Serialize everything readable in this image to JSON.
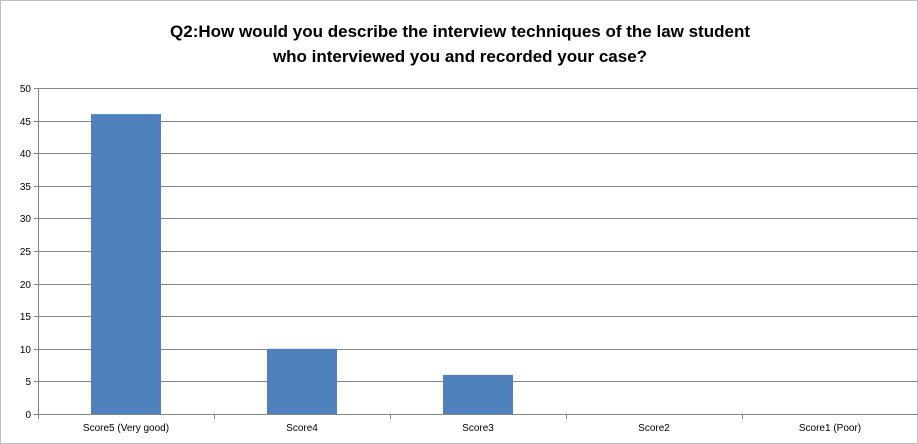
{
  "chart_data": {
    "type": "bar",
    "title_lines": [
      "Q2:How would you describe the interview techniques of the law student",
      "who interviewed you and recorded your case?"
    ],
    "categories": [
      "Score5 (Very good)",
      "Score4",
      "Score3",
      "Score2",
      "Score1 (Poor)"
    ],
    "values": [
      46,
      10,
      6,
      0,
      0
    ],
    "xlabel": "",
    "ylabel": "",
    "ylim": [
      0,
      50
    ],
    "yticks": [
      0,
      5,
      10,
      15,
      20,
      25,
      30,
      35,
      40,
      45,
      50
    ],
    "grid": true,
    "legend": "none",
    "bar_color": "#4f81bd",
    "grid_color": "#868686"
  }
}
